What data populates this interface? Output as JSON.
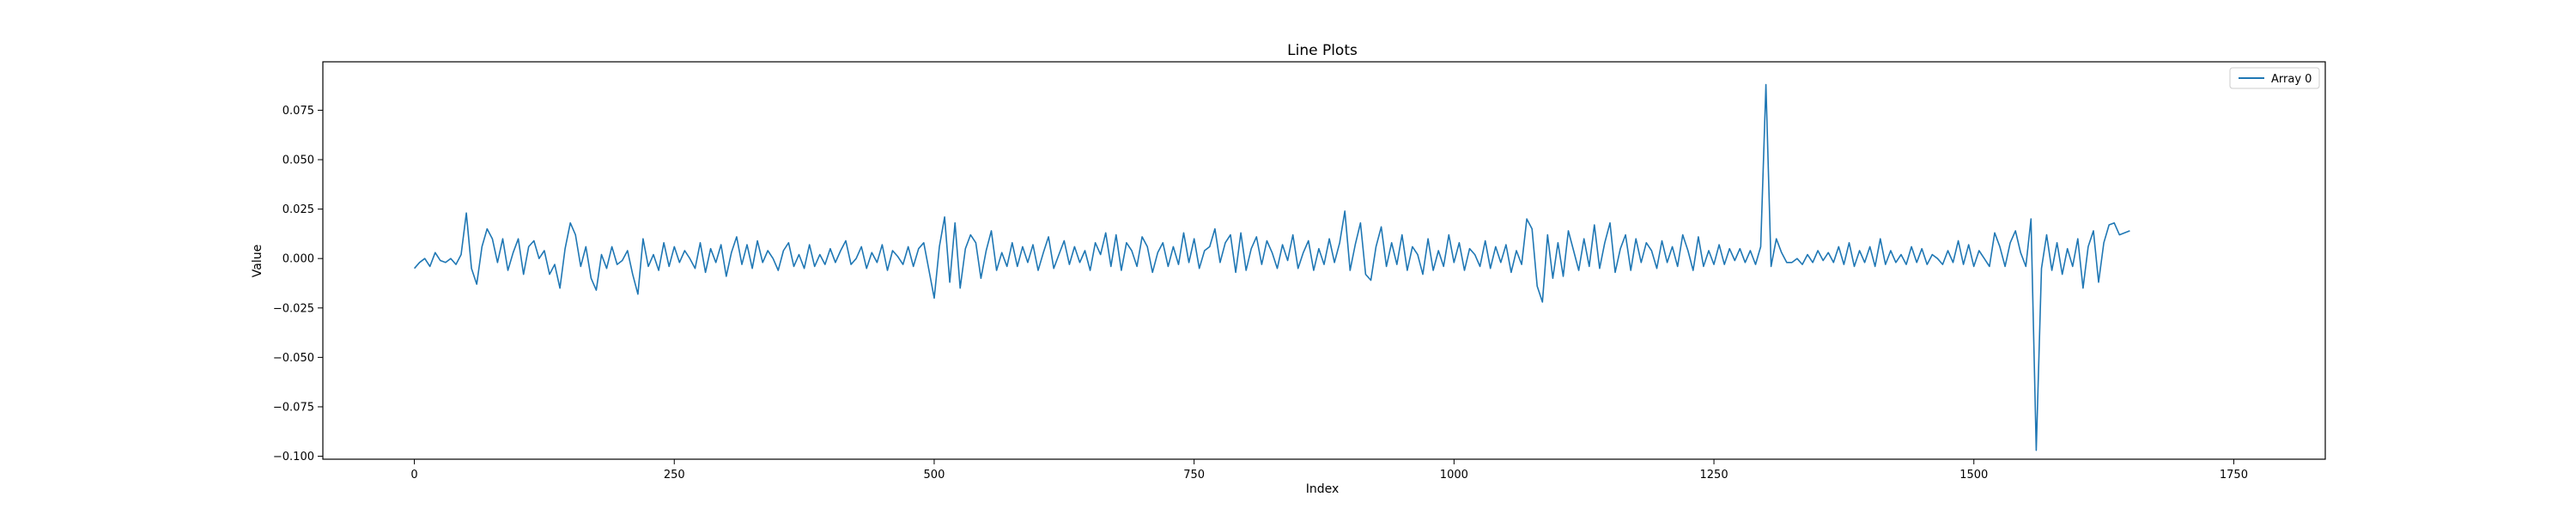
{
  "chart_data": {
    "type": "line",
    "title": "Line Plots",
    "xlabel": "Index",
    "ylabel": "Value",
    "xlim": [
      -88,
      1838
    ],
    "ylim": [
      -0.1015,
      0.0995
    ],
    "xticks": [
      0,
      250,
      500,
      750,
      1000,
      1250,
      1500,
      1750
    ],
    "xtick_labels": [
      "0",
      "250",
      "500",
      "750",
      "1000",
      "1250",
      "1500",
      "1750"
    ],
    "yticks": [
      -0.1,
      -0.075,
      -0.05,
      -0.025,
      0.0,
      0.025,
      0.05,
      0.075
    ],
    "ytick_labels": [
      "−0.100",
      "−0.075",
      "−0.050",
      "−0.025",
      "0.000",
      "0.025",
      "0.050",
      "0.075"
    ],
    "grid": false,
    "legend": {
      "position": "top-right",
      "entries": [
        "Array 0"
      ]
    },
    "series": [
      {
        "name": "Array 0",
        "color": "#1f77b4",
        "x_start": 0,
        "x_step": 5,
        "values": [
          -0.005,
          -0.002,
          0.0,
          -0.004,
          0.003,
          -0.001,
          -0.002,
          0.0,
          -0.003,
          0.002,
          0.023,
          -0.005,
          -0.013,
          0.006,
          0.015,
          0.01,
          -0.002,
          0.01,
          -0.006,
          0.003,
          0.01,
          -0.008,
          0.006,
          0.009,
          0.0,
          0.004,
          -0.008,
          -0.003,
          -0.015,
          0.005,
          0.018,
          0.012,
          -0.004,
          0.006,
          -0.01,
          -0.016,
          0.002,
          -0.005,
          0.006,
          -0.003,
          -0.001,
          0.004,
          -0.008,
          -0.018,
          0.01,
          -0.004,
          0.002,
          -0.006,
          0.008,
          -0.004,
          0.006,
          -0.002,
          0.004,
          0.0,
          -0.005,
          0.008,
          -0.007,
          0.005,
          -0.002,
          0.007,
          -0.009,
          0.003,
          0.011,
          -0.003,
          0.007,
          -0.005,
          0.009,
          -0.002,
          0.004,
          0.0,
          -0.006,
          0.004,
          0.008,
          -0.004,
          0.002,
          -0.005,
          0.007,
          -0.004,
          0.002,
          -0.003,
          0.005,
          -0.002,
          0.004,
          0.009,
          -0.003,
          0.0,
          0.006,
          -0.005,
          0.003,
          -0.002,
          0.007,
          -0.006,
          0.004,
          0.001,
          -0.003,
          0.006,
          -0.004,
          0.005,
          0.008,
          -0.006,
          -0.02,
          0.006,
          0.021,
          -0.012,
          0.018,
          -0.015,
          0.005,
          0.012,
          0.008,
          -0.01,
          0.004,
          0.014,
          -0.006,
          0.003,
          -0.004,
          0.008,
          -0.004,
          0.006,
          -0.002,
          0.007,
          -0.006,
          0.003,
          0.011,
          -0.005,
          0.002,
          0.009,
          -0.003,
          0.006,
          -0.002,
          0.004,
          -0.006,
          0.008,
          0.002,
          0.013,
          -0.004,
          0.012,
          -0.006,
          0.008,
          0.004,
          -0.004,
          0.011,
          0.006,
          -0.007,
          0.003,
          0.008,
          -0.004,
          0.006,
          -0.003,
          0.013,
          -0.002,
          0.01,
          -0.005,
          0.004,
          0.006,
          0.015,
          -0.002,
          0.008,
          0.012,
          -0.007,
          0.013,
          -0.006,
          0.005,
          0.011,
          -0.003,
          0.009,
          0.003,
          -0.005,
          0.007,
          -0.001,
          0.012,
          -0.005,
          0.003,
          0.009,
          -0.006,
          0.005,
          -0.003,
          0.01,
          -0.002,
          0.008,
          0.024,
          -0.006,
          0.007,
          0.018,
          -0.008,
          -0.011,
          0.006,
          0.016,
          -0.004,
          0.008,
          -0.003,
          0.012,
          -0.006,
          0.006,
          0.002,
          -0.008,
          0.01,
          -0.006,
          0.004,
          -0.004,
          0.012,
          -0.002,
          0.008,
          -0.006,
          0.005,
          0.002,
          -0.004,
          0.009,
          -0.005,
          0.006,
          -0.002,
          0.007,
          -0.007,
          0.004,
          -0.003,
          0.02,
          0.015,
          -0.014,
          -0.022,
          0.012,
          -0.01,
          0.008,
          -0.009,
          0.014,
          0.004,
          -0.006,
          0.01,
          -0.004,
          0.017,
          -0.005,
          0.008,
          0.018,
          -0.007,
          0.005,
          0.012,
          -0.006,
          0.01,
          -0.002,
          0.008,
          0.004,
          -0.005,
          0.009,
          -0.002,
          0.006,
          -0.004,
          0.012,
          0.004,
          -0.006,
          0.011,
          -0.004,
          0.004,
          -0.003,
          0.007,
          -0.003,
          0.005,
          -0.001,
          0.005,
          -0.002,
          0.004,
          -0.003,
          0.006,
          0.088,
          -0.004,
          0.01,
          0.003,
          -0.002,
          -0.002,
          0.0,
          -0.003,
          0.002,
          -0.002,
          0.004,
          -0.001,
          0.003,
          -0.002,
          0.006,
          -0.003,
          0.008,
          -0.004,
          0.004,
          -0.002,
          0.006,
          -0.004,
          0.01,
          -0.003,
          0.004,
          -0.002,
          0.002,
          -0.003,
          0.006,
          -0.002,
          0.005,
          -0.003,
          0.002,
          0.0,
          -0.003,
          0.004,
          -0.002,
          0.009,
          -0.003,
          0.007,
          -0.004,
          0.004,
          0.0,
          -0.004,
          0.013,
          0.006,
          -0.004,
          0.008,
          0.014,
          0.003,
          -0.004,
          0.02,
          -0.097,
          -0.005,
          0.012,
          -0.006,
          0.008,
          -0.008,
          0.005,
          -0.004,
          0.01,
          -0.015,
          0.006,
          0.014,
          -0.012,
          0.008,
          0.017,
          0.018,
          0.012,
          0.013,
          0.014
        ]
      }
    ]
  }
}
